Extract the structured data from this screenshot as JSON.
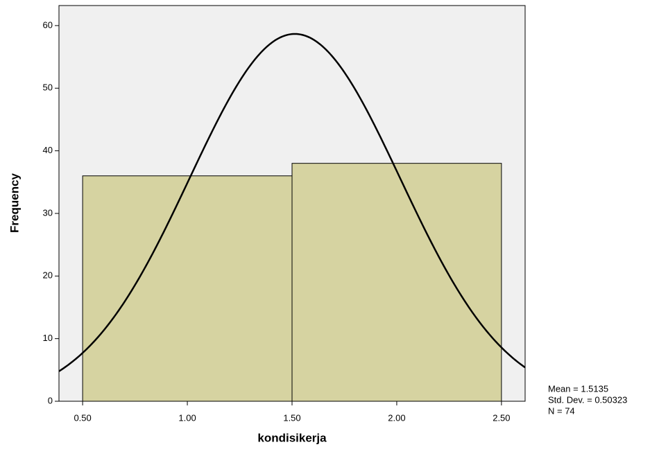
{
  "chart_data": {
    "type": "histogram",
    "x_label": "kondisikerja",
    "y_label": "Frequency",
    "bins": [
      0.5,
      1.5,
      2.5
    ],
    "counts": [
      36,
      38
    ],
    "color": "#d6d3a1",
    "edge_color": "#000000",
    "background": "#f0f0f0",
    "xlim": [
      0.387,
      2.613
    ],
    "ylim": [
      0,
      63.2
    ],
    "xticks": [
      {
        "value": 0.5,
        "label": "0.50"
      },
      {
        "value": 1,
        "label": "1.00"
      },
      {
        "value": 1.5,
        "label": "1.50"
      },
      {
        "value": 2,
        "label": "2.00"
      },
      {
        "value": 2.5,
        "label": "2.50"
      }
    ],
    "yticks": [
      0,
      10,
      20,
      30,
      40,
      50,
      60
    ],
    "normal_curve": true,
    "stats": [
      {
        "value": 1.5135,
        "label": "Mean = 1.5135"
      },
      {
        "value": 0.50323,
        "label": "Std. Dev. = 0.50323"
      },
      {
        "value": 74,
        "label": "N = 74"
      }
    ]
  }
}
